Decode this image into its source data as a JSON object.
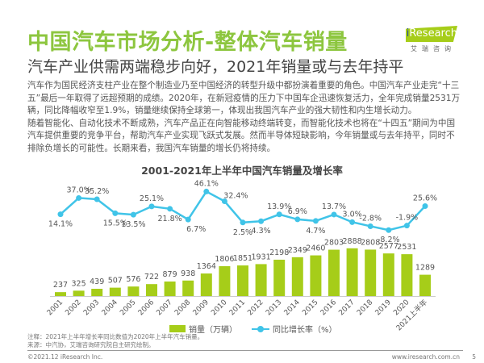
{
  "header": {
    "title": "中国汽车市场分析-整体汽车销量",
    "subtitle": "汽车产业供需两端稳步向好，2021年销量或与去年持平"
  },
  "logo": {
    "brand": "iResearch",
    "cn": "艾瑞咨询"
  },
  "paragraph": [
    "汽车作为国民经济支柱产业在整个制造业乃至中国经济的转型升级中都扮演着重要的角色。中国汽车产业走完“十三五”最后一年取得了远超预期的成绩。2020年，在新冠疫情的压力下中国车企迅速恢复活力，全年完成销量2531万辆，同比降幅收窄至1.9%，销量继续保持全球第一，体现出我国汽车产业的强大韧性和内生增长动力。",
    "随着智能化、自动化技术不断成熟，汽车产品正在向智能移动终端转变，而智能化技术也将在“十四五”期间为中国汽车提供重要的竞争平台，帮助汽车产业实现飞跃式发展。然而半导体短缺影响，今年销量或与去年持平，同时不排除负增长的可能性。长期来看，我国汽车销量的增长仍将持续。"
  ],
  "chart_data": {
    "type": "bar+line",
    "title": "2001-2021年上半年中国汽车销量及增长率",
    "categories": [
      "2001",
      "2002",
      "2003",
      "2004",
      "2005",
      "2006",
      "2007",
      "2008",
      "2009",
      "2010",
      "2011",
      "2012",
      "2013",
      "2014",
      "2015",
      "2016",
      "2017",
      "2018",
      "2019",
      "2020",
      "2021上半年"
    ],
    "series": [
      {
        "name": "销量（万辆）",
        "type": "bar",
        "color": "#a6cd19",
        "values": [
          237,
          325,
          439,
          507,
          576,
          722,
          879,
          938,
          1364,
          1806,
          1851,
          1931,
          2198,
          2349,
          2460,
          2803,
          2888,
          2808,
          2577,
          2531,
          1289
        ]
      },
      {
        "name": "同比增长率（%）",
        "type": "line",
        "color": "#40c4e8",
        "values": [
          14.1,
          37.0,
          35.2,
          15.5,
          13.5,
          25.1,
          21.8,
          6.7,
          46.1,
          32.4,
          2.5,
          4.3,
          13.9,
          6.9,
          4.7,
          13.7,
          3.0,
          -2.8,
          -8.2,
          -1.9,
          25.6
        ]
      }
    ],
    "legend_position": "bottom",
    "grid": false
  },
  "notes": [
    "注释：2021年上半年增长率同比数值为2020年上半年汽车销量。",
    "来源：中汽协，艾瑞咨询研究院自主研究绘制。"
  ],
  "footer": {
    "copyright": "©2021.12 iResearch Inc.",
    "url": "www.iresearch.com.cn",
    "page": "5"
  }
}
